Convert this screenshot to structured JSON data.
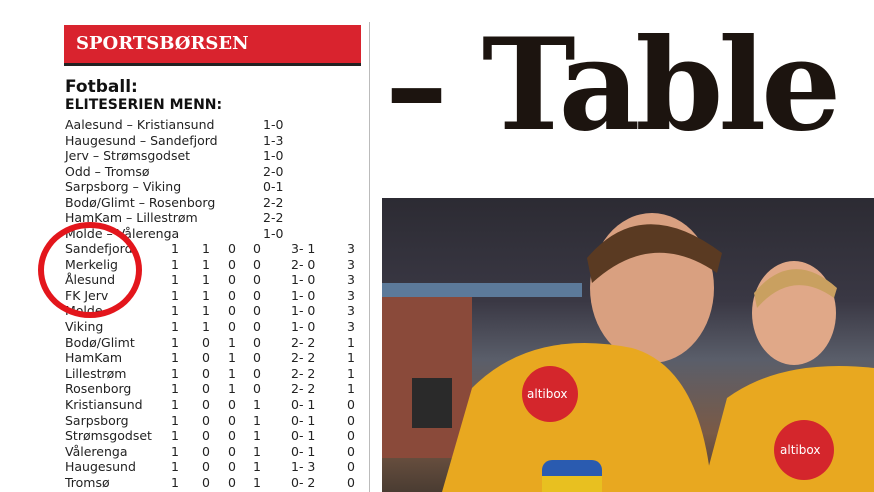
{
  "section": "SPORTSBØRSEN",
  "sport": "Fotball:",
  "league": "ELITESERIEN MENN:",
  "results": [
    {
      "match": "Aalesund – Kristiansund",
      "score": "1-0"
    },
    {
      "match": "Haugesund – Sandefjord",
      "score": "1-3"
    },
    {
      "match": "Jerv – Strømsgodset",
      "score": "1-0"
    },
    {
      "match": "Odd – Tromsø",
      "score": "2-0"
    },
    {
      "match": "Sarpsborg – Viking",
      "score": "0-1"
    },
    {
      "match": "Bodø/Glimt – Rosenborg",
      "score": "2-2"
    },
    {
      "match": "HamKam – Lillestrøm",
      "score": "2-2"
    },
    {
      "match": "Molde – Vålerenga",
      "score": "1-0"
    }
  ],
  "standings": [
    {
      "team": "Sandefjord",
      "p": "1",
      "w": "1",
      "d": "0",
      "l": "0",
      "goals": "3- 1",
      "pts": "3"
    },
    {
      "team": "Merkelig",
      "p": "1",
      "w": "1",
      "d": "0",
      "l": "0",
      "goals": "2- 0",
      "pts": "3"
    },
    {
      "team": "Ålesund",
      "p": "1",
      "w": "1",
      "d": "0",
      "l": "0",
      "goals": "1- 0",
      "pts": "3"
    },
    {
      "team": "FK Jerv",
      "p": "1",
      "w": "1",
      "d": "0",
      "l": "0",
      "goals": "1- 0",
      "pts": "3"
    },
    {
      "team": "Molde",
      "p": "1",
      "w": "1",
      "d": "0",
      "l": "0",
      "goals": "1- 0",
      "pts": "3"
    },
    {
      "team": "Viking",
      "p": "1",
      "w": "1",
      "d": "0",
      "l": "0",
      "goals": "1- 0",
      "pts": "3"
    },
    {
      "team": "Bodø/Glimt",
      "p": "1",
      "w": "0",
      "d": "1",
      "l": "0",
      "goals": "2- 2",
      "pts": "1"
    },
    {
      "team": "HamKam",
      "p": "1",
      "w": "0",
      "d": "1",
      "l": "0",
      "goals": "2- 2",
      "pts": "1"
    },
    {
      "team": "Lillestrøm",
      "p": "1",
      "w": "0",
      "d": "1",
      "l": "0",
      "goals": "2- 2",
      "pts": "1"
    },
    {
      "team": "Rosenborg",
      "p": "1",
      "w": "0",
      "d": "1",
      "l": "0",
      "goals": "2- 2",
      "pts": "1"
    },
    {
      "team": "Kristiansund",
      "p": "1",
      "w": "0",
      "d": "0",
      "l": "1",
      "goals": "0- 1",
      "pts": "0"
    },
    {
      "team": "Sarpsborg",
      "p": "1",
      "w": "0",
      "d": "0",
      "l": "1",
      "goals": "0- 1",
      "pts": "0"
    },
    {
      "team": "Strømsgodset",
      "p": "1",
      "w": "0",
      "d": "0",
      "l": "1",
      "goals": "0- 1",
      "pts": "0"
    },
    {
      "team": "Vålerenga",
      "p": "1",
      "w": "0",
      "d": "0",
      "l": "1",
      "goals": "0- 1",
      "pts": "0"
    },
    {
      "team": "Haugesund",
      "p": "1",
      "w": "0",
      "d": "0",
      "l": "1",
      "goals": "1- 3",
      "pts": "0"
    },
    {
      "team": "Tromsø",
      "p": "1",
      "w": "0",
      "d": "0",
      "l": "1",
      "goals": "0- 2",
      "pts": "0"
    }
  ],
  "headline": "– Table",
  "sponsor": "altibox",
  "colors": {
    "accent": "#d9232e",
    "highlight_circle": "#e3161c",
    "jersey": "#e8a820"
  }
}
